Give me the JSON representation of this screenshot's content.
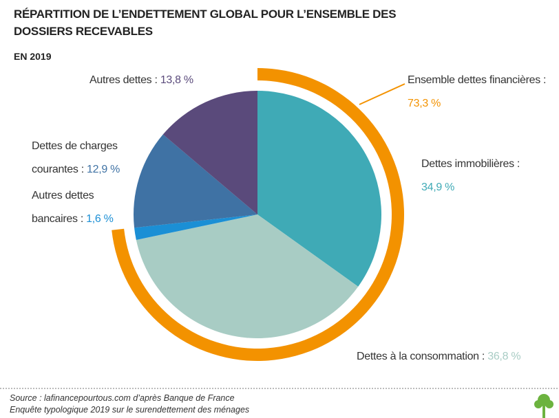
{
  "chart_data": {
    "type": "pie",
    "title": "RÉPARTITION DE L’ENDETTEMENT GLOBAL POUR L’ENSEMBLE DES DOSSIERS RECEVABLES",
    "subtitle": "EN 2019",
    "categories": [
      "Dettes immobilières :",
      "Dettes à la consommation :",
      "Autres dettes bancaires :",
      "Dettes de charges courantes :",
      "Autres dettes :"
    ],
    "values": [
      34.9,
      36.8,
      1.6,
      12.9,
      13.8
    ],
    "value_labels": [
      "34,9 %",
      "36,8 %",
      "1,6 %",
      "12,9 %",
      "13,8 %"
    ],
    "colors": [
      "#3faab6",
      "#a8ccc4",
      "#1b8fd5",
      "#3f72a4",
      "#5a4a7b"
    ],
    "arc": {
      "name": "Ensemble dettes financières :",
      "value": 73.3,
      "value_label": "73,3 %",
      "color": "#f39200"
    },
    "source": [
      "Source : lafinancepourtous.com d’après Banque de France",
      "Enquête typologique 2019 sur le surendettement des ménages"
    ]
  }
}
